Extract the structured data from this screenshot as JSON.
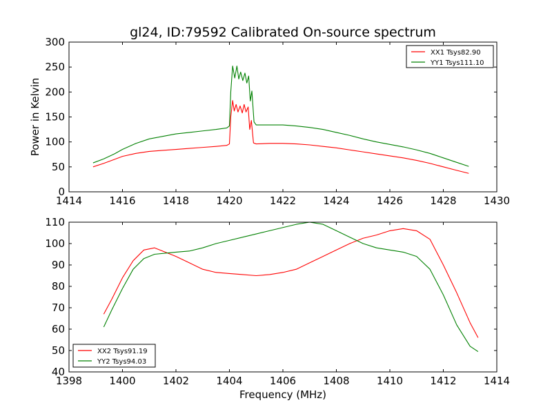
{
  "colors": {
    "red": "#ff0000",
    "green": "#008000"
  },
  "chart_data": [
    {
      "type": "line",
      "title": "gl24, ID:79592 Calibrated On-source spectrum",
      "xlabel": "",
      "ylabel": "Power in Kelvin",
      "xlim": [
        1414,
        1430
      ],
      "ylim": [
        0,
        300
      ],
      "xticks": [
        1414,
        1416,
        1418,
        1420,
        1422,
        1424,
        1426,
        1428,
        1430
      ],
      "yticks": [
        0,
        50,
        100,
        150,
        200,
        250,
        300
      ],
      "grid": false,
      "legend_position": "top-right",
      "series": [
        {
          "name": "XX1 Tsys82.90",
          "color": "#ff0000",
          "x": [
            1414.9,
            1415.3,
            1415.7,
            1416.0,
            1416.5,
            1417.0,
            1417.5,
            1418.0,
            1418.5,
            1419.0,
            1419.5,
            1419.9,
            1420.0,
            1420.05,
            1420.12,
            1420.18,
            1420.25,
            1420.32,
            1420.4,
            1420.48,
            1420.55,
            1420.62,
            1420.7,
            1420.76,
            1420.82,
            1420.9,
            1421.0,
            1421.5,
            1422.0,
            1422.5,
            1423.0,
            1423.5,
            1424.0,
            1424.5,
            1425.0,
            1425.5,
            1426.0,
            1426.5,
            1427.0,
            1427.5,
            1428.0,
            1428.5,
            1428.95
          ],
          "values": [
            50,
            57,
            65,
            71,
            77,
            81,
            83,
            85,
            87,
            89,
            91,
            93,
            96,
            150,
            183,
            162,
            175,
            160,
            172,
            158,
            175,
            160,
            170,
            125,
            143,
            98,
            96,
            97,
            97,
            96,
            94,
            91,
            88,
            84,
            80,
            76,
            72,
            68,
            63,
            57,
            50,
            43,
            37
          ]
        },
        {
          "name": "YY1 Tsys111.10",
          "color": "#008000",
          "x": [
            1414.9,
            1415.3,
            1415.7,
            1416.0,
            1416.5,
            1417.0,
            1417.5,
            1418.0,
            1418.5,
            1419.0,
            1419.5,
            1419.9,
            1420.0,
            1420.05,
            1420.12,
            1420.2,
            1420.28,
            1420.35,
            1420.42,
            1420.5,
            1420.58,
            1420.65,
            1420.72,
            1420.78,
            1420.84,
            1420.92,
            1421.0,
            1421.5,
            1422.0,
            1422.5,
            1423.0,
            1423.5,
            1424.0,
            1424.5,
            1425.0,
            1425.5,
            1426.0,
            1426.5,
            1427.0,
            1427.5,
            1428.0,
            1428.5,
            1428.95
          ],
          "values": [
            58,
            66,
            76,
            85,
            97,
            106,
            111,
            116,
            119,
            122,
            125,
            128,
            132,
            200,
            252,
            228,
            252,
            226,
            240,
            223,
            238,
            218,
            232,
            182,
            202,
            140,
            134,
            134,
            134,
            132,
            129,
            125,
            119,
            113,
            106,
            100,
            95,
            90,
            84,
            77,
            68,
            59,
            51
          ]
        }
      ]
    },
    {
      "type": "line",
      "title": "",
      "xlabel": "Frequency (MHz)",
      "ylabel": "",
      "xlim": [
        1398,
        1414
      ],
      "ylim": [
        40,
        110
      ],
      "xticks": [
        1398,
        1400,
        1402,
        1404,
        1406,
        1408,
        1410,
        1412,
        1414
      ],
      "yticks": [
        40,
        50,
        60,
        70,
        80,
        90,
        100,
        110
      ],
      "grid": false,
      "legend_position": "bottom-left",
      "series": [
        {
          "name": "XX2 Tsys91.19",
          "color": "#ff0000",
          "x": [
            1399.3,
            1399.6,
            1400.0,
            1400.4,
            1400.8,
            1401.2,
            1401.6,
            1402.0,
            1402.5,
            1403.0,
            1403.5,
            1404.0,
            1404.5,
            1405.0,
            1405.5,
            1406.0,
            1406.5,
            1407.0,
            1407.5,
            1408.0,
            1408.5,
            1409.0,
            1409.5,
            1410.0,
            1410.5,
            1411.0,
            1411.5,
            1412.0,
            1412.5,
            1413.0,
            1413.3
          ],
          "values": [
            67,
            74,
            84,
            92,
            97,
            98,
            96,
            94,
            91,
            88,
            86.5,
            86,
            85.5,
            85,
            85.5,
            86.5,
            88,
            91,
            94,
            97,
            100,
            102.5,
            104,
            106,
            107,
            106,
            102,
            90,
            77,
            63,
            56
          ]
        },
        {
          "name": "YY2 Tsys94.03",
          "color": "#008000",
          "x": [
            1399.3,
            1399.6,
            1400.0,
            1400.4,
            1400.8,
            1401.2,
            1401.6,
            1402.0,
            1402.5,
            1403.0,
            1403.5,
            1404.0,
            1404.5,
            1405.0,
            1405.5,
            1406.0,
            1406.5,
            1407.0,
            1407.5,
            1408.0,
            1408.5,
            1409.0,
            1409.5,
            1410.0,
            1410.5,
            1411.0,
            1411.5,
            1412.0,
            1412.5,
            1413.0,
            1413.3
          ],
          "values": [
            61,
            69,
            79,
            88,
            93,
            95,
            95.5,
            96,
            96.5,
            98,
            100,
            101.5,
            103,
            104.5,
            106,
            107.5,
            109,
            110,
            109,
            106,
            103,
            100,
            98,
            97,
            96,
            94,
            88,
            76,
            62,
            52,
            49.5
          ]
        }
      ]
    }
  ]
}
